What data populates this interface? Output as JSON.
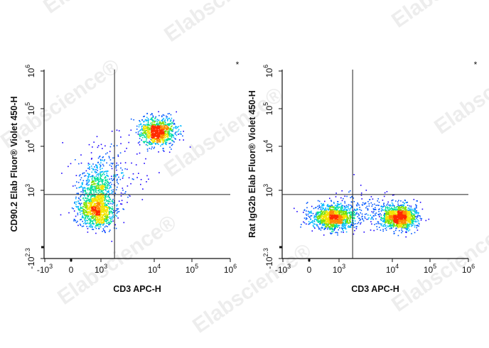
{
  "chart_data": [
    {
      "type": "scatter",
      "subtype": "flow-cytometry-density-plot",
      "xlabel": "CD3 APC-H",
      "ylabel": "CD90.2 Elab Fluor® Violet 450-H",
      "x_scale": "biexponential",
      "y_scale": "biexponential",
      "xlim": [
        -1000,
        1000000
      ],
      "ylim": [
        -200,
        1000000
      ],
      "x_ticks": [
        "-10^3",
        "0",
        "10^3",
        "10^4",
        "10^5",
        "10^6"
      ],
      "y_ticks": [
        "-10^2.3",
        "10^3",
        "10^4",
        "10^5",
        "10^6"
      ],
      "quadrant_gate": {
        "x": 1800,
        "y": 600
      },
      "corner_marker": "*",
      "populations": [
        {
          "name": "",
          "x_center": 350,
          "y_center": 90,
          "x_spread": 0.45,
          "y_spread": 0.45,
          "share": 0.38
        },
        {
          "name": "",
          "x_center": 350,
          "y_center": 1200,
          "x_spread": 0.45,
          "y_spread": 0.5,
          "share": 0.17
        },
        {
          "name": "",
          "x_center": 12000,
          "y_center": 25000,
          "x_spread": 0.45,
          "y_spread": 0.35,
          "share": 0.38
        },
        {
          "name": "",
          "x_center": 1500,
          "y_center": 3000,
          "x_spread": 0.8,
          "y_spread": 0.8,
          "share": 0.07
        }
      ]
    },
    {
      "type": "scatter",
      "subtype": "flow-cytometry-density-plot",
      "xlabel": "CD3 APC-H",
      "ylabel": "Rat IgG2b Elab Fluor® Violet 450-H",
      "x_scale": "biexponential",
      "y_scale": "biexponential",
      "xlim": [
        -1000,
        1000000
      ],
      "ylim": [
        -200,
        1000000
      ],
      "x_ticks": [
        "-10^3",
        "0",
        "10^3",
        "10^4",
        "10^5",
        "10^6"
      ],
      "y_ticks": [
        "-10^2.3",
        "10^3",
        "10^4",
        "10^5",
        "10^6"
      ],
      "quadrant_gate": {
        "x": 1800,
        "y": 600
      },
      "corner_marker": "*",
      "populations": [
        {
          "name": "",
          "x_center": 250,
          "y_center": 40,
          "x_spread": 0.55,
          "y_spread": 0.3,
          "share": 0.47
        },
        {
          "name": "",
          "x_center": 15000,
          "y_center": 40,
          "x_spread": 0.45,
          "y_spread": 0.3,
          "share": 0.47
        },
        {
          "name": "",
          "x_center": 3000,
          "y_center": 100,
          "x_spread": 0.8,
          "y_spread": 0.5,
          "share": 0.06
        }
      ]
    }
  ],
  "watermark_text": "Elabscience®",
  "colors": {
    "density_scale": [
      "#1a00ff",
      "#0057ff",
      "#00b8ff",
      "#00e09a",
      "#7ee000",
      "#f4e400",
      "#ff8a00",
      "#ff2a00"
    ],
    "axis": "#111111",
    "gate": "#222222"
  }
}
